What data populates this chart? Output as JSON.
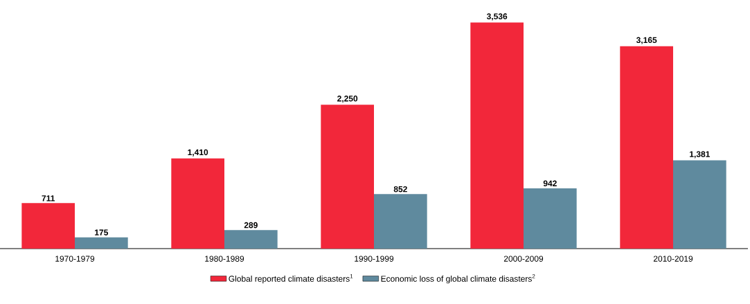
{
  "chart_data": {
    "type": "bar",
    "categories": [
      "1970-1979",
      "1980-1989",
      "1990-1999",
      "2000-2009",
      "2010-2019"
    ],
    "series": [
      {
        "name": "Global reported climate disasters$^{1}$",
        "color": "#f2273a",
        "values": [
          711,
          1410,
          2250,
          3536,
          3165
        ],
        "value_labels": [
          "711",
          "1,410",
          "2,250",
          "3,536",
          "3,165"
        ]
      },
      {
        "name": "Economic loss of global climate disasters$^{2}$",
        "color": "#5f8a9e",
        "values": [
          175,
          289,
          852,
          942,
          1381
        ],
        "value_labels": [
          "175",
          "289",
          "852",
          "942",
          "1,381"
        ]
      }
    ],
    "legend": "bottom"
  }
}
